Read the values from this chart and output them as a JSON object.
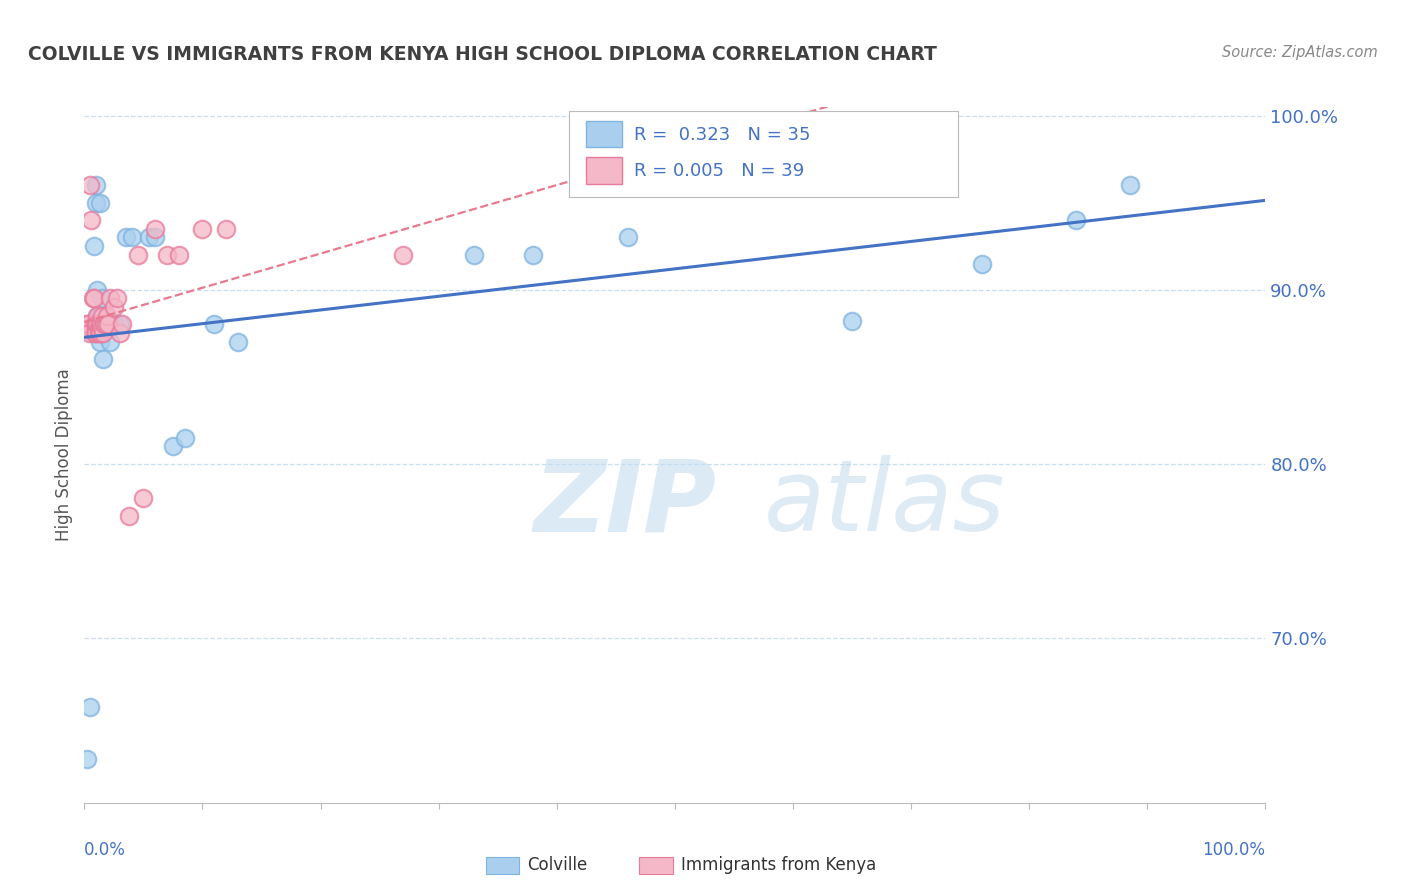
{
  "title": "COLVILLE VS IMMIGRANTS FROM KENYA HIGH SCHOOL DIPLOMA CORRELATION CHART",
  "source": "Source: ZipAtlas.com",
  "ylabel": "High School Diploma",
  "legend_label1": "Colville",
  "legend_label2": "Immigrants from Kenya",
  "r1": 0.323,
  "n1": 35,
  "r2": 0.005,
  "n2": 39,
  "colville_x": [
    0.002,
    0.005,
    0.007,
    0.008,
    0.009,
    0.01,
    0.01,
    0.011,
    0.011,
    0.012,
    0.013,
    0.013,
    0.014,
    0.015,
    0.015,
    0.016,
    0.018,
    0.022,
    0.025,
    0.03,
    0.035,
    0.04,
    0.055,
    0.06,
    0.075,
    0.085,
    0.11,
    0.13,
    0.33,
    0.38,
    0.46,
    0.65,
    0.76,
    0.84,
    0.885
  ],
  "colville_y": [
    0.63,
    0.66,
    0.875,
    0.925,
    0.88,
    0.95,
    0.96,
    0.885,
    0.9,
    0.885,
    0.87,
    0.95,
    0.875,
    0.895,
    0.875,
    0.86,
    0.88,
    0.87,
    0.88,
    0.88,
    0.93,
    0.93,
    0.93,
    0.93,
    0.81,
    0.815,
    0.88,
    0.87,
    0.92,
    0.92,
    0.93,
    0.882,
    0.915,
    0.94,
    0.96
  ],
  "kenya_x": [
    0.002,
    0.003,
    0.004,
    0.005,
    0.006,
    0.007,
    0.008,
    0.009,
    0.009,
    0.01,
    0.01,
    0.011,
    0.011,
    0.012,
    0.012,
    0.013,
    0.013,
    0.014,
    0.015,
    0.015,
    0.016,
    0.017,
    0.018,
    0.019,
    0.02,
    0.022,
    0.025,
    0.028,
    0.03,
    0.032,
    0.038,
    0.045,
    0.05,
    0.06,
    0.07,
    0.08,
    0.1,
    0.12,
    0.27
  ],
  "kenya_y": [
    0.88,
    0.88,
    0.875,
    0.96,
    0.94,
    0.895,
    0.895,
    0.88,
    0.875,
    0.88,
    0.875,
    0.885,
    0.88,
    0.878,
    0.875,
    0.88,
    0.875,
    0.88,
    0.885,
    0.878,
    0.875,
    0.88,
    0.88,
    0.885,
    0.88,
    0.895,
    0.89,
    0.895,
    0.875,
    0.88,
    0.77,
    0.92,
    0.78,
    0.935,
    0.92,
    0.92,
    0.935,
    0.935,
    0.92
  ],
  "colville_color_face": "#aacfee",
  "colville_color_edge": "#7fb3e0",
  "kenya_color_face": "#f4b8c8",
  "kenya_color_edge": "#e87a9a",
  "colville_line_color": "#4472c4",
  "kenya_line_color": "#e87a8e",
  "background_color": "#ffffff",
  "grid_color": "#c8dff0",
  "ytick_color": "#4472c4",
  "title_color": "#404040",
  "watermark_zip": "ZIP",
  "watermark_atlas": "atlas",
  "xlim": [
    0.0,
    1.0
  ],
  "ylim": [
    0.605,
    1.005
  ],
  "yticks": [
    0.7,
    0.8,
    0.9,
    1.0
  ],
  "ytick_labels": [
    "70.0%",
    "80.0%",
    "90.0%",
    "100.0%"
  ]
}
